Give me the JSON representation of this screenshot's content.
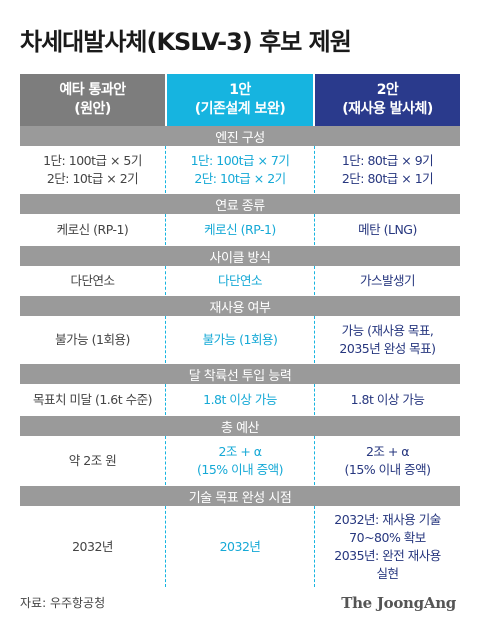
{
  "title": "차세대발사체(KSLV-3) 후보 제원",
  "header": {
    "col0": [
      "예타 통과안",
      "(원안)"
    ],
    "col1": [
      "1안",
      "(기존설계 보완)"
    ],
    "col2": [
      "2안",
      "(재사용 발사체)"
    ]
  },
  "sections": [
    {
      "label": "엔진 구성",
      "cells": [
        [
          "1단: 100t급 × 5기",
          "2단: 10t급 × 2기"
        ],
        [
          "1단: 100t급 × 7기",
          "2단: 10t급 × 2기"
        ],
        [
          "1단: 80t급 × 9기",
          "2단: 80t급 × 1기"
        ]
      ]
    },
    {
      "label": "연료 종류",
      "cells": [
        [
          "케로신 (RP-1)"
        ],
        [
          "케로신 (RP-1)"
        ],
        [
          "메탄 (LNG)"
        ]
      ]
    },
    {
      "label": "사이클 방식",
      "cells": [
        [
          "다단연소"
        ],
        [
          "다단연소"
        ],
        [
          "가스발생기"
        ]
      ]
    },
    {
      "label": "재사용 여부",
      "cells": [
        [
          "불가능 (1회용)"
        ],
        [
          "불가능 (1회용)"
        ],
        [
          "가능 (재사용 목표,",
          "2035년 완성 목표)"
        ]
      ]
    },
    {
      "label": "달 착륙선 투입 능력",
      "cells": [
        [
          "목표치 미달 (1.6t 수준)"
        ],
        [
          "1.8t 이상 가능"
        ],
        [
          "1.8t 이상 가능"
        ]
      ]
    },
    {
      "label": "총 예산",
      "cells": [
        [
          "약 2조 원"
        ],
        [
          "2조 + α",
          "(15% 이내 증액)"
        ],
        [
          "2조 + α",
          "(15% 이내 증액)"
        ]
      ]
    },
    {
      "label": "기술 목표 완성 시점",
      "cells": [
        [
          "2032년"
        ],
        [
          "2032년"
        ],
        [
          "2032년: 재사용 기술",
          "70~80% 확보",
          "2035년: 완전 재사용",
          "실현"
        ]
      ]
    }
  ],
  "source": "자료: 우주항공청",
  "logo": "The JoongAng",
  "colors": {
    "col1": "#16b4e0",
    "col2": "#2a3a8c",
    "col0": "#7d7d7d",
    "section": "#9a9a9a"
  }
}
